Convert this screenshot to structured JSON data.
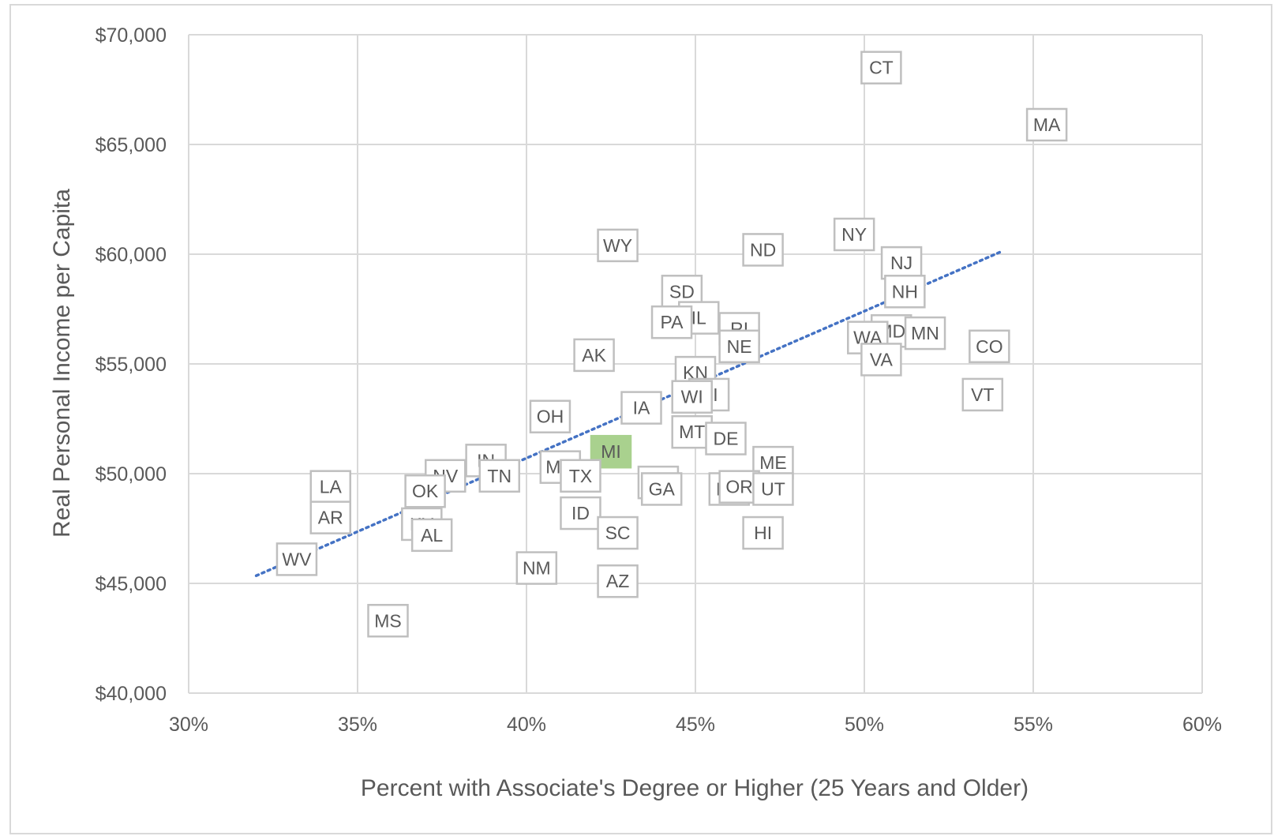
{
  "chart_data": {
    "type": "scatter",
    "title": "",
    "xlabel": "Percent with Associate's Degree or Higher (25 Years and Older)",
    "ylabel": "Real Personal Income per Capita",
    "xlim": [
      30,
      60
    ],
    "ylim": [
      40000,
      70000
    ],
    "x_ticks": [
      30,
      35,
      40,
      45,
      50,
      55,
      60
    ],
    "x_tick_labels": [
      "30%",
      "35%",
      "40%",
      "45%",
      "50%",
      "55%",
      "60%"
    ],
    "y_ticks": [
      40000,
      45000,
      50000,
      55000,
      60000,
      65000,
      70000
    ],
    "y_tick_labels": [
      "$40,000",
      "$45,000",
      "$50,000",
      "$55,000",
      "$60,000",
      "$65,000",
      "$70,000"
    ],
    "grid": true,
    "legend": "none",
    "highlight_color": "#a9d18e",
    "trendline": {
      "style": "dotted",
      "color": "#4472c4",
      "x": [
        32.0,
        54.1
      ],
      "y": [
        45350,
        60150
      ]
    },
    "points": [
      {
        "label": "CT",
        "x": 50.5,
        "y": 68500
      },
      {
        "label": "MA",
        "x": 55.4,
        "y": 65900
      },
      {
        "label": "NY",
        "x": 49.7,
        "y": 60900
      },
      {
        "label": "ND",
        "x": 47.0,
        "y": 60200
      },
      {
        "label": "WY",
        "x": 42.7,
        "y": 60400
      },
      {
        "label": "NJ",
        "x": 51.1,
        "y": 59600
      },
      {
        "label": "NH",
        "x": 51.2,
        "y": 58300
      },
      {
        "label": "SD",
        "x": 44.6,
        "y": 58300
      },
      {
        "label": "IL",
        "x": 45.1,
        "y": 57100
      },
      {
        "label": "PA",
        "x": 44.3,
        "y": 56900
      },
      {
        "label": "RI",
        "x": 46.3,
        "y": 56600
      },
      {
        "label": "MD",
        "x": 50.8,
        "y": 56500
      },
      {
        "label": "MN",
        "x": 51.8,
        "y": 56400
      },
      {
        "label": "WA",
        "x": 50.1,
        "y": 56200
      },
      {
        "label": "NE",
        "x": 46.3,
        "y": 55800
      },
      {
        "label": "CO",
        "x": 53.7,
        "y": 55800
      },
      {
        "label": "AK",
        "x": 42.0,
        "y": 55400
      },
      {
        "label": "VA",
        "x": 50.5,
        "y": 55200
      },
      {
        "label": "KN",
        "x": 45.0,
        "y": 54600
      },
      {
        "label": "HI",
        "x": 45.4,
        "y": 53600
      },
      {
        "label": "WI",
        "x": 44.9,
        "y": 53500
      },
      {
        "label": "VT",
        "x": 53.5,
        "y": 53600
      },
      {
        "label": "OH",
        "x": 40.7,
        "y": 52600
      },
      {
        "label": "IA",
        "x": 43.4,
        "y": 53000
      },
      {
        "label": "MT",
        "x": 44.9,
        "y": 51900
      },
      {
        "label": "DE",
        "x": 45.9,
        "y": 51600
      },
      {
        "label": "MI",
        "x": 42.5,
        "y": 51000
      },
      {
        "label": "IN",
        "x": 38.8,
        "y": 50600
      },
      {
        "label": "ME",
        "x": 47.3,
        "y": 50500
      },
      {
        "label": "MO",
        "x": 41.0,
        "y": 50300
      },
      {
        "label": "NV",
        "x": 37.6,
        "y": 49900
      },
      {
        "label": "TN",
        "x": 39.2,
        "y": 49900
      },
      {
        "label": "TX",
        "x": 41.6,
        "y": 49900
      },
      {
        "label": "FL",
        "x": 43.9,
        "y": 49600
      },
      {
        "label": "GA",
        "x": 44.0,
        "y": 49300
      },
      {
        "label": "NC",
        "x": 46.0,
        "y": 49300
      },
      {
        "label": "OR",
        "x": 46.3,
        "y": 49400
      },
      {
        "label": "UT",
        "x": 47.3,
        "y": 49300
      },
      {
        "label": "LA",
        "x": 34.2,
        "y": 49400
      },
      {
        "label": "OK",
        "x": 37.0,
        "y": 49200
      },
      {
        "label": "AR",
        "x": 34.2,
        "y": 48000
      },
      {
        "label": "ID",
        "x": 41.6,
        "y": 48200
      },
      {
        "label": "KY",
        "x": 36.9,
        "y": 47700
      },
      {
        "label": "AL",
        "x": 37.2,
        "y": 47200
      },
      {
        "label": "SC",
        "x": 42.7,
        "y": 47300
      },
      {
        "label": "HI",
        "x": 47.0,
        "y": 47300
      },
      {
        "label": "WV",
        "x": 33.2,
        "y": 46100
      },
      {
        "label": "NM",
        "x": 40.3,
        "y": 45700
      },
      {
        "label": "AZ",
        "x": 42.7,
        "y": 45100
      },
      {
        "label": "MS",
        "x": 35.9,
        "y": 43300
      }
    ],
    "highlight": "MI"
  }
}
